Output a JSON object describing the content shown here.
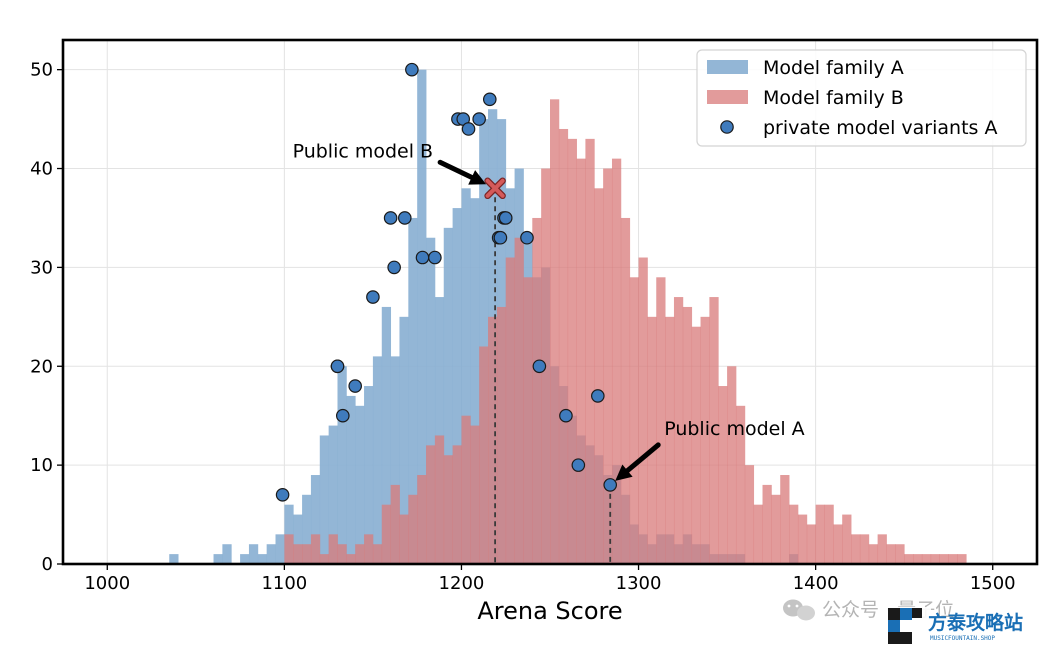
{
  "chart_data": {
    "type": "histogram",
    "xlabel": "Arena Score",
    "ylabel": "",
    "xlim": [
      975,
      1525
    ],
    "ylim": [
      0,
      53
    ],
    "x_ticks": [
      1000,
      1100,
      1200,
      1300,
      1400,
      1500
    ],
    "y_ticks": [
      0,
      10,
      20,
      30,
      40,
      50
    ],
    "grid": true,
    "legend_position": "top-right",
    "bin_width": 5,
    "series": [
      {
        "name": "Model family A",
        "color": "#8ab0d3",
        "bins": [
          [
            1035,
            1
          ],
          [
            1060,
            1
          ],
          [
            1065,
            2
          ],
          [
            1075,
            1
          ],
          [
            1080,
            2
          ],
          [
            1085,
            1
          ],
          [
            1090,
            2
          ],
          [
            1095,
            3
          ],
          [
            1100,
            6
          ],
          [
            1105,
            5
          ],
          [
            1110,
            7
          ],
          [
            1115,
            9
          ],
          [
            1120,
            13
          ],
          [
            1125,
            14
          ],
          [
            1130,
            20
          ],
          [
            1135,
            17
          ],
          [
            1140,
            16
          ],
          [
            1145,
            18
          ],
          [
            1150,
            21
          ],
          [
            1155,
            26
          ],
          [
            1160,
            21
          ],
          [
            1165,
            25
          ],
          [
            1170,
            35
          ],
          [
            1175,
            50
          ],
          [
            1180,
            33
          ],
          [
            1185,
            27
          ],
          [
            1190,
            34
          ],
          [
            1195,
            36
          ],
          [
            1200,
            38
          ],
          [
            1205,
            37
          ],
          [
            1210,
            45
          ],
          [
            1215,
            46
          ],
          [
            1220,
            45
          ],
          [
            1225,
            38
          ],
          [
            1230,
            40
          ],
          [
            1235,
            33
          ],
          [
            1240,
            29
          ],
          [
            1245,
            30
          ],
          [
            1250,
            20
          ],
          [
            1255,
            18
          ],
          [
            1260,
            15
          ],
          [
            1265,
            13
          ],
          [
            1270,
            12
          ],
          [
            1275,
            11
          ],
          [
            1280,
            9
          ],
          [
            1285,
            10
          ],
          [
            1290,
            7
          ],
          [
            1295,
            4
          ],
          [
            1300,
            3
          ],
          [
            1305,
            2
          ],
          [
            1310,
            3
          ],
          [
            1315,
            3
          ],
          [
            1320,
            2
          ],
          [
            1325,
            3
          ],
          [
            1330,
            2
          ],
          [
            1335,
            2
          ],
          [
            1340,
            1
          ],
          [
            1345,
            1
          ],
          [
            1350,
            1
          ],
          [
            1355,
            1
          ],
          [
            1385,
            1
          ]
        ]
      },
      {
        "name": "Model family B",
        "color": "#d97b7b",
        "bins": [
          [
            1100,
            3
          ],
          [
            1105,
            2
          ],
          [
            1110,
            2
          ],
          [
            1115,
            3
          ],
          [
            1120,
            1
          ],
          [
            1125,
            3
          ],
          [
            1130,
            2
          ],
          [
            1135,
            1
          ],
          [
            1140,
            2
          ],
          [
            1145,
            3
          ],
          [
            1150,
            2
          ],
          [
            1155,
            6
          ],
          [
            1160,
            8
          ],
          [
            1165,
            5
          ],
          [
            1170,
            7
          ],
          [
            1175,
            9
          ],
          [
            1180,
            12
          ],
          [
            1185,
            13
          ],
          [
            1190,
            11
          ],
          [
            1195,
            12
          ],
          [
            1200,
            15
          ],
          [
            1205,
            14
          ],
          [
            1210,
            22
          ],
          [
            1215,
            25
          ],
          [
            1220,
            26
          ],
          [
            1225,
            31
          ],
          [
            1230,
            33
          ],
          [
            1235,
            29
          ],
          [
            1240,
            35
          ],
          [
            1245,
            40
          ],
          [
            1250,
            47
          ],
          [
            1255,
            44
          ],
          [
            1260,
            43
          ],
          [
            1265,
            41
          ],
          [
            1270,
            43
          ],
          [
            1275,
            38
          ],
          [
            1280,
            40
          ],
          [
            1285,
            41
          ],
          [
            1290,
            35
          ],
          [
            1295,
            29
          ],
          [
            1300,
            31
          ],
          [
            1305,
            25
          ],
          [
            1310,
            29
          ],
          [
            1315,
            25
          ],
          [
            1320,
            27
          ],
          [
            1325,
            26
          ],
          [
            1330,
            24
          ],
          [
            1335,
            25
          ],
          [
            1340,
            27
          ],
          [
            1345,
            18
          ],
          [
            1350,
            20
          ],
          [
            1355,
            16
          ],
          [
            1360,
            10
          ],
          [
            1365,
            6
          ],
          [
            1370,
            8
          ],
          [
            1375,
            7
          ],
          [
            1380,
            9
          ],
          [
            1385,
            6
          ],
          [
            1390,
            5
          ],
          [
            1395,
            4
          ],
          [
            1400,
            6
          ],
          [
            1405,
            6
          ],
          [
            1410,
            4
          ],
          [
            1415,
            5
          ],
          [
            1420,
            3
          ],
          [
            1425,
            3
          ],
          [
            1430,
            2
          ],
          [
            1435,
            3
          ],
          [
            1440,
            2
          ],
          [
            1445,
            2
          ],
          [
            1450,
            1
          ],
          [
            1455,
            1
          ],
          [
            1460,
            1
          ],
          [
            1465,
            1
          ],
          [
            1470,
            1
          ],
          [
            1475,
            1
          ],
          [
            1480,
            1
          ]
        ]
      }
    ],
    "scatter": {
      "name": "private model variants A",
      "color": "#3f7bbd",
      "points": [
        [
          1099,
          7
        ],
        [
          1130,
          20
        ],
        [
          1130,
          20
        ],
        [
          1133,
          15
        ],
        [
          1140,
          18
        ],
        [
          1150,
          27
        ],
        [
          1160,
          35
        ],
        [
          1162,
          30
        ],
        [
          1168,
          35
        ],
        [
          1172,
          50
        ],
        [
          1178,
          31
        ],
        [
          1185,
          31
        ],
        [
          1198,
          45
        ],
        [
          1201,
          45
        ],
        [
          1204,
          44
        ],
        [
          1210,
          45
        ],
        [
          1216,
          47
        ],
        [
          1221,
          33
        ],
        [
          1222,
          33
        ],
        [
          1224,
          35
        ],
        [
          1225,
          35
        ],
        [
          1237,
          33
        ],
        [
          1244,
          20
        ],
        [
          1259,
          15
        ],
        [
          1266,
          10
        ],
        [
          1277,
          17
        ],
        [
          1284,
          8
        ]
      ]
    },
    "annotations": [
      {
        "text": "Public model B",
        "point": [
          1219,
          38
        ],
        "marker": "x",
        "marker_color": "#d45a5a"
      },
      {
        "text": "Public model A",
        "point": [
          1284,
          8
        ],
        "marker": "dashed-line"
      }
    ]
  },
  "watermark": {
    "source_text": "公众号 · 量子位",
    "brand_text": "方泰攻略站",
    "brand_sub": "MUSICFOUNTAIN.SHOP"
  }
}
